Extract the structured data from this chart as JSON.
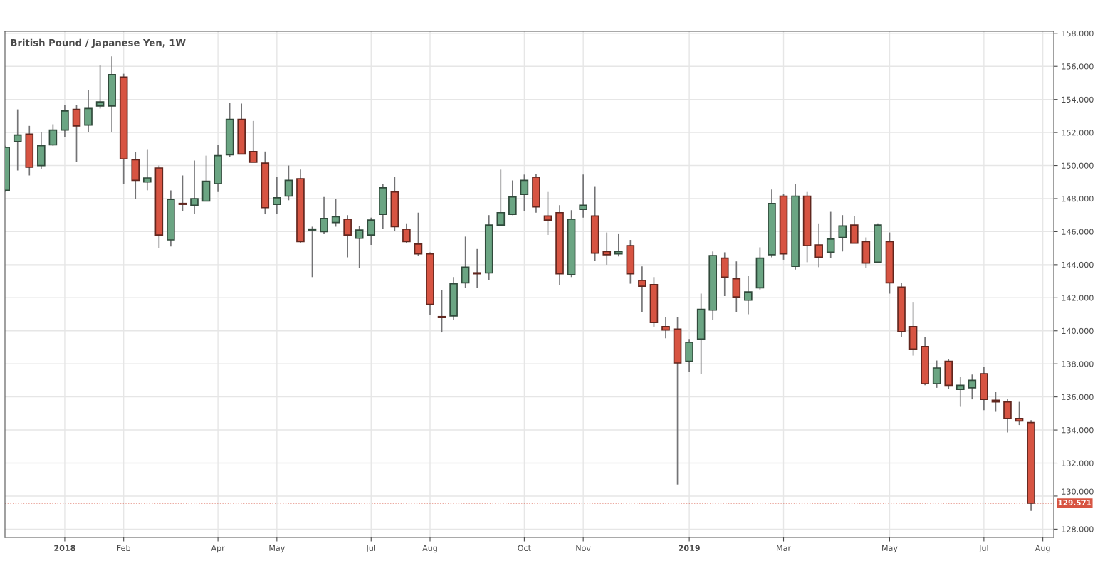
{
  "chart_data": {
    "type": "candlestick",
    "title": "British Pound / Japanese Yen, 1W",
    "x": [
      "2017-11-27",
      "2017-12-04",
      "2017-12-11",
      "2017-12-18",
      "2017-12-25",
      "2018-01-01",
      "2018-01-08",
      "2018-01-15",
      "2018-01-22",
      "2018-01-29",
      "2018-02-05",
      "2018-02-12",
      "2018-02-19",
      "2018-02-26",
      "2018-03-05",
      "2018-03-12",
      "2018-03-19",
      "2018-03-26",
      "2018-04-02",
      "2018-04-09",
      "2018-04-16",
      "2018-04-23",
      "2018-04-30",
      "2018-05-07",
      "2018-05-14",
      "2018-05-21",
      "2018-05-28",
      "2018-06-04",
      "2018-06-11",
      "2018-06-18",
      "2018-06-25",
      "2018-07-02",
      "2018-07-09",
      "2018-07-16",
      "2018-07-23",
      "2018-07-30",
      "2018-08-06",
      "2018-08-13",
      "2018-08-20",
      "2018-08-27",
      "2018-09-03",
      "2018-09-10",
      "2018-09-17",
      "2018-09-24",
      "2018-10-01",
      "2018-10-08",
      "2018-10-15",
      "2018-10-22",
      "2018-10-29",
      "2018-11-05",
      "2018-11-12",
      "2018-11-19",
      "2018-11-26",
      "2018-12-03",
      "2018-12-10",
      "2018-12-17",
      "2018-12-24",
      "2018-12-31",
      "2019-01-07",
      "2019-01-14",
      "2019-01-21",
      "2019-01-28",
      "2019-02-04",
      "2019-02-11",
      "2019-02-18",
      "2019-02-25",
      "2019-03-04",
      "2019-03-11",
      "2019-03-18",
      "2019-03-25",
      "2019-04-01",
      "2019-04-08",
      "2019-04-15",
      "2019-04-22",
      "2019-04-29",
      "2019-05-06",
      "2019-05-13",
      "2019-05-20",
      "2019-05-27",
      "2019-06-03",
      "2019-06-10",
      "2019-06-17",
      "2019-06-24",
      "2019-07-01",
      "2019-07-08",
      "2019-07-15",
      "2019-07-22",
      "2019-07-29"
    ],
    "ohlc": [
      [
        148.5,
        151.2,
        148.4,
        151.1
      ],
      [
        151.45,
        153.4,
        149.7,
        151.85
      ],
      [
        151.9,
        152.4,
        149.4,
        149.9
      ],
      [
        150.0,
        152.0,
        149.8,
        151.2
      ],
      [
        151.25,
        152.5,
        151.2,
        152.15
      ],
      [
        152.15,
        153.65,
        151.75,
        153.3
      ],
      [
        153.4,
        153.65,
        150.2,
        152.4
      ],
      [
        152.45,
        154.55,
        152.0,
        153.45
      ],
      [
        153.6,
        156.05,
        153.45,
        153.85
      ],
      [
        153.6,
        156.6,
        152.0,
        155.5
      ],
      [
        155.35,
        155.55,
        148.9,
        150.4
      ],
      [
        150.35,
        150.8,
        148.0,
        149.1
      ],
      [
        149.0,
        150.95,
        148.5,
        149.25
      ],
      [
        149.85,
        150.0,
        145.0,
        145.8
      ],
      [
        145.5,
        148.5,
        145.1,
        147.95
      ],
      [
        147.7,
        149.4,
        147.25,
        147.65
      ],
      [
        147.6,
        150.3,
        147.05,
        148.0
      ],
      [
        147.85,
        150.6,
        147.85,
        149.05
      ],
      [
        148.9,
        151.25,
        148.4,
        150.6
      ],
      [
        150.65,
        153.8,
        150.5,
        152.8
      ],
      [
        152.8,
        153.75,
        150.7,
        150.7
      ],
      [
        150.85,
        152.7,
        150.2,
        150.2
      ],
      [
        150.15,
        150.85,
        147.05,
        147.45
      ],
      [
        147.65,
        149.3,
        147.05,
        148.05
      ],
      [
        148.15,
        150.0,
        147.9,
        149.1
      ],
      [
        149.2,
        149.75,
        145.3,
        145.4
      ],
      [
        146.1,
        146.3,
        143.25,
        146.15
      ],
      [
        146.0,
        148.1,
        145.85,
        146.8
      ],
      [
        146.55,
        148.0,
        146.3,
        146.9
      ],
      [
        146.75,
        147.0,
        144.45,
        145.8
      ],
      [
        145.6,
        146.35,
        143.8,
        146.1
      ],
      [
        145.8,
        146.85,
        145.2,
        146.7
      ],
      [
        147.05,
        148.9,
        146.15,
        148.65
      ],
      [
        148.4,
        149.3,
        146.05,
        146.3
      ],
      [
        146.15,
        146.5,
        145.3,
        145.4
      ],
      [
        145.25,
        147.15,
        144.55,
        144.65
      ],
      [
        144.65,
        144.75,
        140.95,
        141.6
      ],
      [
        140.85,
        142.45,
        139.9,
        140.8
      ],
      [
        140.9,
        143.25,
        140.65,
        142.85
      ],
      [
        142.9,
        145.7,
        142.6,
        143.85
      ],
      [
        143.5,
        144.95,
        142.6,
        143.45
      ],
      [
        143.5,
        147.0,
        143.05,
        146.4
      ],
      [
        146.4,
        149.75,
        146.4,
        147.15
      ],
      [
        147.05,
        149.1,
        147.0,
        148.1
      ],
      [
        148.25,
        149.45,
        147.25,
        149.1
      ],
      [
        149.3,
        149.5,
        147.15,
        147.5
      ],
      [
        146.95,
        148.4,
        145.8,
        146.7
      ],
      [
        147.15,
        147.6,
        142.75,
        143.45
      ],
      [
        143.4,
        147.3,
        143.25,
        146.75
      ],
      [
        147.35,
        149.45,
        146.85,
        147.6
      ],
      [
        146.95,
        148.75,
        144.25,
        144.7
      ],
      [
        144.8,
        145.95,
        144.0,
        144.6
      ],
      [
        144.65,
        145.85,
        144.5,
        144.8
      ],
      [
        145.15,
        145.5,
        142.85,
        143.45
      ],
      [
        143.05,
        143.9,
        141.15,
        142.7
      ],
      [
        142.8,
        143.25,
        140.25,
        140.5
      ],
      [
        140.25,
        140.85,
        139.55,
        140.05
      ],
      [
        140.1,
        140.85,
        130.7,
        138.05
      ],
      [
        138.15,
        139.5,
        137.5,
        139.3
      ],
      [
        139.5,
        142.25,
        137.4,
        141.3
      ],
      [
        141.25,
        144.8,
        140.65,
        144.55
      ],
      [
        144.4,
        144.75,
        142.1,
        143.25
      ],
      [
        143.15,
        144.2,
        141.15,
        142.05
      ],
      [
        141.85,
        143.3,
        141.0,
        142.35
      ],
      [
        142.6,
        145.05,
        142.5,
        144.4
      ],
      [
        144.6,
        148.55,
        144.45,
        147.7
      ],
      [
        148.15,
        148.3,
        144.3,
        144.65
      ],
      [
        143.9,
        148.9,
        143.7,
        148.15
      ],
      [
        148.15,
        148.4,
        144.15,
        145.15
      ],
      [
        145.2,
        146.5,
        143.85,
        144.45
      ],
      [
        144.75,
        147.2,
        144.4,
        145.55
      ],
      [
        145.65,
        147.0,
        144.8,
        146.35
      ],
      [
        146.4,
        146.95,
        145.3,
        145.3
      ],
      [
        145.4,
        145.65,
        143.8,
        144.1
      ],
      [
        144.15,
        146.5,
        144.1,
        146.4
      ],
      [
        145.4,
        145.95,
        142.25,
        142.9
      ],
      [
        142.65,
        142.9,
        139.6,
        139.95
      ],
      [
        140.25,
        141.75,
        138.5,
        138.9
      ],
      [
        139.05,
        139.65,
        136.7,
        136.8
      ],
      [
        136.8,
        138.2,
        136.55,
        137.75
      ],
      [
        138.15,
        138.3,
        136.5,
        136.7
      ],
      [
        136.45,
        137.2,
        135.4,
        136.7
      ],
      [
        136.55,
        137.35,
        135.85,
        137.0
      ],
      [
        137.4,
        137.8,
        135.2,
        135.85
      ],
      [
        135.8,
        136.3,
        135.1,
        135.7
      ],
      [
        135.7,
        135.85,
        133.85,
        134.7
      ],
      [
        134.7,
        135.7,
        134.3,
        134.55
      ],
      [
        134.45,
        134.6,
        129.1,
        129.571
      ]
    ],
    "colors": [
      "#6ba583",
      "#6ba583",
      "#d75442",
      "#6ba583",
      "#6ba583",
      "#6ba583",
      "#d75442",
      "#6ba583",
      "#6ba583",
      "#6ba583",
      "#d75442",
      "#d75442",
      "#6ba583",
      "#d75442",
      "#6ba583",
      "#d75442",
      "#6ba583",
      "#6ba583",
      "#6ba583",
      "#6ba583",
      "#d75442",
      "#d75442",
      "#d75442",
      "#6ba583",
      "#6ba583",
      "#d75442",
      "#6ba583",
      "#6ba583",
      "#6ba583",
      "#d75442",
      "#6ba583",
      "#6ba583",
      "#6ba583",
      "#d75442",
      "#d75442",
      "#d75442",
      "#d75442",
      "#d75442",
      "#6ba583",
      "#6ba583",
      "#d75442",
      "#6ba583",
      "#6ba583",
      "#6ba583",
      "#6ba583",
      "#d75442",
      "#d75442",
      "#d75442",
      "#6ba583",
      "#6ba583",
      "#d75442",
      "#d75442",
      "#6ba583",
      "#d75442",
      "#d75442",
      "#d75442",
      "#d75442",
      "#d75442",
      "#6ba583",
      "#6ba583",
      "#6ba583",
      "#d75442",
      "#d75442",
      "#6ba583",
      "#6ba583",
      "#6ba583",
      "#d75442",
      "#6ba583",
      "#d75442",
      "#d75442",
      "#6ba583",
      "#6ba583",
      "#d75442",
      "#d75442",
      "#6ba583",
      "#d75442",
      "#d75442",
      "#d75442",
      "#d75442",
      "#6ba583",
      "#d75442",
      "#6ba583",
      "#6ba583",
      "#d75442",
      "#d75442",
      "#d75442",
      "#d75442",
      "#d75442"
    ],
    "xlim": [
      "2017-11-26T12:00",
      "2019-08-11T12:00"
    ],
    "xticks": [
      {
        "value": "2018-01-01",
        "label": "2018"
      },
      {
        "value": "2018-02-05",
        "label": "Feb"
      },
      {
        "value": "2018-04-02",
        "label": "Apr"
      },
      {
        "value": "2018-05-07",
        "label": "May"
      },
      {
        "value": "2018-07-02",
        "label": "Jul"
      },
      {
        "value": "2018-08-06",
        "label": "Aug"
      },
      {
        "value": "2018-10-01",
        "label": "Oct"
      },
      {
        "value": "2018-11-05",
        "label": "Nov"
      },
      {
        "value": "2019-01-07",
        "label": "2019"
      },
      {
        "value": "2019-03-04",
        "label": "Mar"
      },
      {
        "value": "2019-05-06",
        "label": "May"
      },
      {
        "value": "2019-07-01",
        "label": "Jul"
      },
      {
        "value": "2019-08-05",
        "label": "Aug"
      }
    ],
    "ylim": [
      127.5,
      158.12
    ],
    "yticks": [
      {
        "value": 128,
        "label": "128.000"
      },
      {
        "value": 130,
        "label": "130.000"
      },
      {
        "value": 132,
        "label": "132.000"
      },
      {
        "value": 134,
        "label": "134.000"
      },
      {
        "value": 136,
        "label": "136.000"
      },
      {
        "value": 138,
        "label": "138.000"
      },
      {
        "value": 140,
        "label": "140.000"
      },
      {
        "value": 142,
        "label": "142.000"
      },
      {
        "value": 144,
        "label": "144.000"
      },
      {
        "value": 146,
        "label": "146.000"
      },
      {
        "value": 148,
        "label": "148.000"
      },
      {
        "value": 150,
        "label": "150.000"
      },
      {
        "value": 152,
        "label": "152.000"
      },
      {
        "value": 154,
        "label": "154.000"
      },
      {
        "value": 156,
        "label": "156.000"
      },
      {
        "value": 158,
        "label": "158.000"
      }
    ],
    "ref_lines": [
      {
        "axis": "y",
        "value": 129.571,
        "label": "129.571",
        "color": "#d75442",
        "line_style": "dotted"
      }
    ],
    "grid": true
  }
}
